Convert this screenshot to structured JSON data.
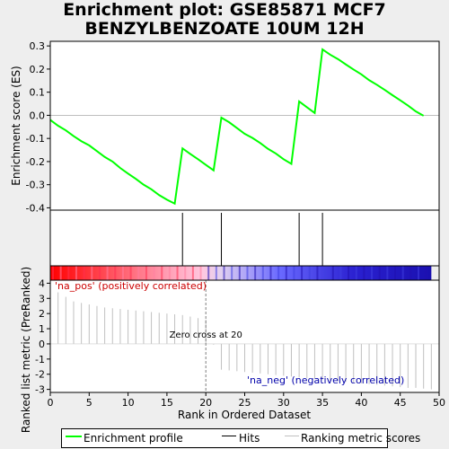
{
  "title_line1": "Enrichment plot: GSE85871 MCF7",
  "title_line2": "BENZYLBENZOATE 10UM 12H",
  "chart_data": {
    "type": "line",
    "es_ylabel": "Enrichment score (ES)",
    "es_yticks": [
      0.3,
      0.2,
      0.1,
      0.0,
      -0.1,
      -0.2,
      -0.3,
      -0.4
    ],
    "es_ylim": [
      -0.41,
      0.32
    ],
    "es_curve": {
      "x": [
        0,
        1,
        2,
        3,
        4,
        5,
        6,
        7,
        8,
        9,
        10,
        11,
        12,
        13,
        14,
        15,
        16,
        17,
        18,
        19,
        20,
        21,
        22,
        23,
        24,
        25,
        26,
        27,
        28,
        29,
        30,
        31,
        32,
        33,
        34,
        35,
        36,
        37,
        38,
        39,
        40,
        41,
        42,
        43,
        44,
        45,
        46,
        47,
        48
      ],
      "y": [
        -0.02,
        -0.045,
        -0.065,
        -0.09,
        -0.112,
        -0.13,
        -0.155,
        -0.18,
        -0.2,
        -0.228,
        -0.252,
        -0.275,
        -0.3,
        -0.32,
        -0.345,
        -0.365,
        -0.382,
        -0.143,
        -0.167,
        -0.19,
        -0.214,
        -0.238,
        -0.01,
        -0.03,
        -0.055,
        -0.08,
        -0.098,
        -0.12,
        -0.145,
        -0.165,
        -0.19,
        -0.21,
        0.06,
        0.035,
        0.01,
        0.285,
        0.262,
        0.243,
        0.22,
        0.198,
        0.177,
        0.152,
        0.132,
        0.11,
        0.087,
        0.065,
        0.042,
        0.017,
        -0.002
      ]
    },
    "hits": [
      17,
      22,
      32,
      35
    ],
    "metric_ylabel": "Ranked list metric (PreRanked)",
    "metric_yticks": [
      4,
      3,
      2,
      1,
      0,
      -1,
      -2,
      -3
    ],
    "metric_ylim": [
      -3.2,
      4.2
    ],
    "metric_values": [
      3.4,
      3.1,
      2.8,
      2.7,
      2.6,
      2.5,
      2.4,
      2.35,
      2.3,
      2.25,
      2.2,
      2.15,
      2.1,
      2.05,
      2.0,
      1.95,
      1.9,
      1.8,
      1.7,
      1.6,
      -0.05,
      -1.7,
      -1.75,
      -1.8,
      -1.85,
      -1.9,
      -1.95,
      -2.0,
      -2.05,
      -2.1,
      -2.15,
      -2.2,
      -2.25,
      -2.3,
      -2.35,
      -2.4,
      -2.45,
      -2.5,
      -2.55,
      -2.6,
      -2.65,
      -2.7,
      -2.75,
      -2.8,
      -2.85,
      -2.9,
      -2.9,
      -2.95,
      -3.0
    ],
    "xlabel": "Rank in Ordered Dataset",
    "xticks": [
      0,
      5,
      10,
      15,
      20,
      25,
      30,
      35,
      40,
      45,
      50
    ],
    "xlim": [
      0,
      50
    ],
    "zero_cross": 20,
    "zero_cross_label": "Zero cross at 20",
    "pos_label": "'na_pos' (positively correlated)",
    "neg_label": "'na_neg' (negatively correlated)",
    "legend": [
      "Enrichment profile",
      "Hits",
      "Ranking metric scores"
    ],
    "colors": {
      "es_line": "#00ff00",
      "hits": "#000000",
      "metric": "#c0c0c0",
      "pos_label": "#cc0000",
      "neg_label": "#0000aa",
      "zero_line": "#808080"
    }
  }
}
